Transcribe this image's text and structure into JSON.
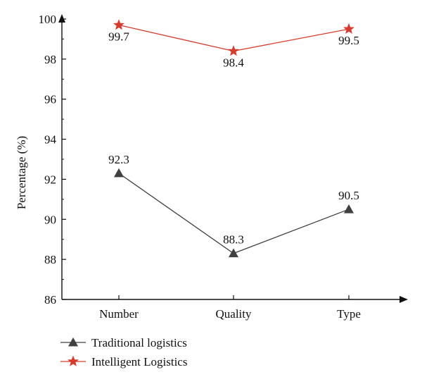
{
  "chart_data": {
    "type": "line",
    "categories": [
      "Number",
      "Quality",
      "Type"
    ],
    "series": [
      {
        "name": "Traditional logistics",
        "values": [
          92.3,
          88.3,
          90.5
        ],
        "labels": [
          "92.3",
          "88.3",
          "90.5"
        ],
        "color": "#404040",
        "marker": "triangle"
      },
      {
        "name": "Intelligent Logistics",
        "values": [
          99.7,
          98.4,
          99.5
        ],
        "labels": [
          "99.7",
          "98.4",
          "99.5"
        ],
        "color": "#d93a2b",
        "marker": "star"
      }
    ],
    "ylabel": "Percentage (%)",
    "ylim": [
      86,
      100
    ],
    "yticks": [
      86,
      88,
      90,
      92,
      94,
      96,
      98,
      100
    ],
    "grid": false,
    "legend": "bottom-left"
  }
}
